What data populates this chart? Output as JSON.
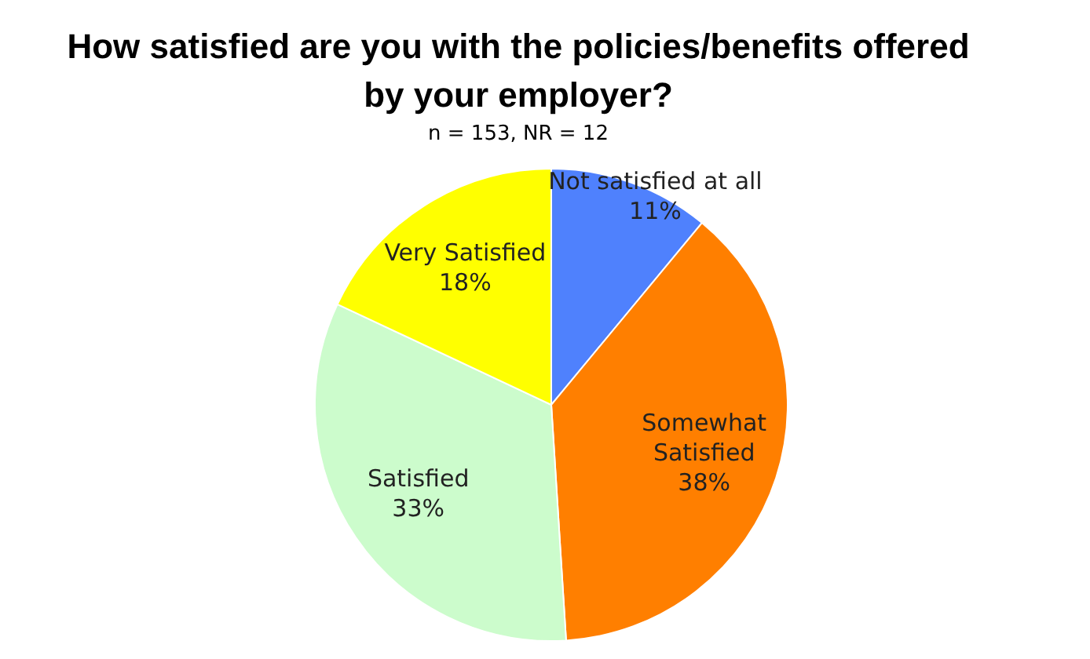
{
  "chart_data": {
    "type": "pie",
    "title": "How satisfied are you with the policies/benefits offered by your employer?",
    "subtitle": "n = 153, NR = 12",
    "categories": [
      "Not satisfied at all",
      "Somewhat Satisfied",
      "Satisfied",
      "Very Satisfied"
    ],
    "values": [
      11,
      38,
      33,
      18
    ],
    "colors": [
      "#4f81fd",
      "#ff7f00",
      "#ccfccc",
      "#ffff00"
    ],
    "value_labels": [
      "11%",
      "38%",
      "33%",
      "18%"
    ],
    "legend": false
  }
}
